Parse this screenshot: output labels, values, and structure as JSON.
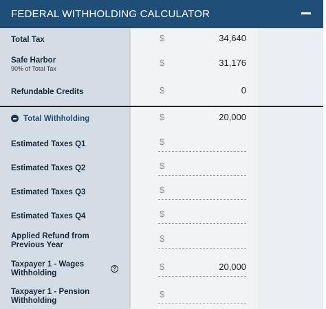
{
  "header": {
    "title": "FEDERAL WITHHOLDING CALCULATOR"
  },
  "summary": {
    "rows": [
      {
        "label": "Total Tax",
        "currency": "$",
        "value": "34,640"
      },
      {
        "label": "Safe Harbor",
        "note": "90% of Total Tax",
        "currency": "$",
        "value": "31,176"
      },
      {
        "label": "Refundable Credits",
        "currency": "$",
        "value": "0"
      }
    ]
  },
  "withholding": {
    "label": "Total Withholding",
    "currency": "$",
    "value": "20,000",
    "rows": [
      {
        "label": "Estimated Taxes Q1",
        "currency": "$"
      },
      {
        "label": "Estimated Taxes Q2",
        "currency": "$"
      },
      {
        "label": "Estimated Taxes Q3",
        "currency": "$"
      },
      {
        "label": "Estimated Taxes Q4",
        "currency": "$"
      },
      {
        "label": "Applied Refund from Previous Year",
        "currency": "$"
      },
      {
        "label": "Taxpayer 1 - Wages Withholding",
        "currency": "$",
        "value": "20,000",
        "help": true
      },
      {
        "label": "Taxpayer 1 - Pension Withholding",
        "currency": "$"
      }
    ]
  }
}
